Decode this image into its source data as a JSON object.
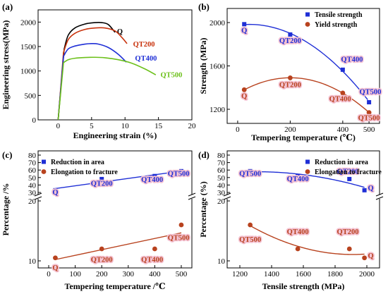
{
  "colors": {
    "blue": "#1f2fd6",
    "red": "#b8421e",
    "orange": "#c8320c",
    "green": "#6cc01a",
    "black": "#000000",
    "label_shadow": "#f4c2d2"
  },
  "chart_data": [
    {
      "panel": "(a)",
      "type": "line",
      "xlabel": "Engineering strain (%)",
      "ylabel": "Engineering stress(MPa)",
      "xlim": [
        -3,
        20
      ],
      "ylim": [
        0,
        2250
      ],
      "xticks": [
        0,
        5,
        10,
        15,
        20
      ],
      "yticks": [
        0,
        500,
        1000,
        1500,
        2000
      ],
      "series": [
        {
          "name": "Q",
          "color": "#000000",
          "x": [
            0,
            0.9,
            1.5,
            2.5,
            4,
            5.5,
            6.5,
            7.5,
            8.5
          ],
          "y": [
            0,
            1450,
            1730,
            1880,
            1960,
            1990,
            1990,
            1950,
            1790
          ],
          "label_pos": [
            8.8,
            1760
          ]
        },
        {
          "name": "QT200",
          "color": "#c8320c",
          "x": [
            0,
            0.8,
            1.5,
            2.5,
            4,
            5.5,
            7,
            8.5,
            9.5,
            10.3
          ],
          "y": [
            0,
            1380,
            1640,
            1770,
            1850,
            1880,
            1880,
            1820,
            1690,
            1560
          ],
          "label_pos": [
            11.2,
            1500
          ]
        },
        {
          "name": "QT400",
          "color": "#1f2fd6",
          "x": [
            0,
            0.8,
            1.5,
            2.5,
            4,
            5,
            6,
            7.5,
            9,
            10.2
          ],
          "y": [
            0,
            1300,
            1450,
            1510,
            1550,
            1560,
            1550,
            1480,
            1340,
            1180
          ],
          "label_pos": [
            11.5,
            1210
          ]
        },
        {
          "name": "QT500",
          "color": "#6cc01a",
          "x": [
            0,
            0.8,
            1.5,
            2.5,
            4,
            5.5,
            7,
            9,
            11,
            13,
            14.6
          ],
          "y": [
            0,
            1170,
            1230,
            1260,
            1275,
            1280,
            1270,
            1230,
            1160,
            1040,
            920
          ],
          "label_pos": [
            15.3,
            870
          ]
        }
      ]
    },
    {
      "panel": "(b)",
      "type": "scatter",
      "xlabel": "Tempering temperature (℃)",
      "ylabel": "Strength (MPa)",
      "xlim": [
        -40,
        540
      ],
      "ylim": [
        1070,
        2130
      ],
      "xticks": [
        0,
        200,
        400,
        500
      ],
      "yticks": [
        1200,
        1600,
        2000
      ],
      "legend": "top-right",
      "series": [
        {
          "name": "Tensile strength",
          "color": "#1f2fd6",
          "marker": "square",
          "x": [
            25,
            200,
            400,
            500
          ],
          "y": [
            1985,
            1890,
            1565,
            1265
          ],
          "point_labels": [
            {
              "text": "Q",
              "at": [
                25,
                1905
              ]
            },
            {
              "text": "QT200",
              "at": [
                200,
                1810
              ]
            },
            {
              "text": "QT400",
              "at": [
                435,
                1640
              ]
            },
            {
              "text": "QT500",
              "at": [
                505,
                1340
              ]
            }
          ]
        },
        {
          "name": "Yield strength",
          "color": "#b8421e",
          "marker": "circle",
          "x": [
            25,
            200,
            400,
            500
          ],
          "y": [
            1380,
            1490,
            1350,
            1170
          ],
          "point_labels": [
            {
              "text": "Q",
              "at": [
                25,
                1300
              ]
            },
            {
              "text": "QT200",
              "at": [
                200,
                1405
              ]
            },
            {
              "text": "QT400",
              "at": [
                390,
                1275
              ]
            },
            {
              "text": "QT500",
              "at": [
                500,
                1100
              ]
            }
          ]
        }
      ]
    },
    {
      "panel": "(c)",
      "type": "scatter",
      "xlabel": "Tempering temperature /℃",
      "ylabel": "Percentage /%",
      "xlim": [
        -40,
        540
      ],
      "xticks": [
        0,
        100,
        200,
        300,
        400,
        500
      ],
      "yticks_upper": [
        30,
        40,
        50,
        60,
        70,
        80
      ],
      "yticks_lower": [
        10,
        20
      ],
      "broken_axis": true,
      "legend": "top-left",
      "series": [
        {
          "name": "Reduction in area",
          "color": "#1f2fd6",
          "marker": "square",
          "x": [
            25,
            200,
            400,
            500
          ],
          "y": [
            33,
            48,
            52,
            58.5
          ],
          "point_labels": [
            {
              "text": "Q",
              "at": [
                25,
                27
              ]
            },
            {
              "text": "QT200",
              "at": [
                200,
                39
              ]
            },
            {
              "text": "QT400",
              "at": [
                390,
                44
              ]
            },
            {
              "text": "QT500",
              "at": [
                490,
                52
              ]
            }
          ]
        },
        {
          "name": "Elongation to fracture",
          "color": "#b8421e",
          "marker": "circle",
          "x": [
            25,
            200,
            400,
            500
          ],
          "y": [
            10.5,
            12,
            12,
            16
          ],
          "point_labels": [
            {
              "text": "Q",
              "at": [
                25,
                8.5
              ]
            },
            {
              "text": "QT200",
              "at": [
                200,
                9.8
              ]
            },
            {
              "text": "QT400",
              "at": [
                390,
                9.8
              ]
            },
            {
              "text": "QT500",
              "at": [
                490,
                13.5
              ]
            }
          ]
        }
      ]
    },
    {
      "panel": "(d)",
      "type": "scatter",
      "xlabel": "Tensile strength (MPa)",
      "ylabel": "Percentage (%)",
      "xlim": [
        1120,
        2080
      ],
      "xticks": [
        1200,
        1400,
        1600,
        1800,
        2000
      ],
      "yticks_upper": [
        30,
        40,
        50,
        60,
        70,
        80
      ],
      "yticks_lower": [
        10,
        20
      ],
      "broken_axis": true,
      "legend": "top-right",
      "series": [
        {
          "name": "Reduction in area",
          "color": "#1f2fd6",
          "marker": "square",
          "x": [
            1265,
            1565,
            1890,
            1985
          ],
          "y": [
            58.5,
            52,
            48,
            33
          ],
          "point_labels": [
            {
              "text": "QT500",
              "at": [
                1265,
                52
              ]
            },
            {
              "text": "QT400",
              "at": [
                1565,
                45
              ]
            },
            {
              "text": "QT200",
              "at": [
                1880,
                55
              ]
            },
            {
              "text": "Q",
              "at": [
                2025,
                33
              ]
            }
          ]
        },
        {
          "name": "Elongation to fracture",
          "color": "#b8421e",
          "marker": "circle",
          "x": [
            1265,
            1565,
            1890,
            1985
          ],
          "y": [
            16,
            12,
            12,
            10.5
          ],
          "point_labels": [
            {
              "text": "QT500",
              "at": [
                1265,
                13.2
              ]
            },
            {
              "text": "QT400",
              "at": [
                1565,
                14.5
              ]
            },
            {
              "text": "QT200",
              "at": [
                1880,
                14.5
              ]
            },
            {
              "text": "Q",
              "at": [
                2025,
                10.5
              ]
            }
          ]
        }
      ]
    }
  ]
}
